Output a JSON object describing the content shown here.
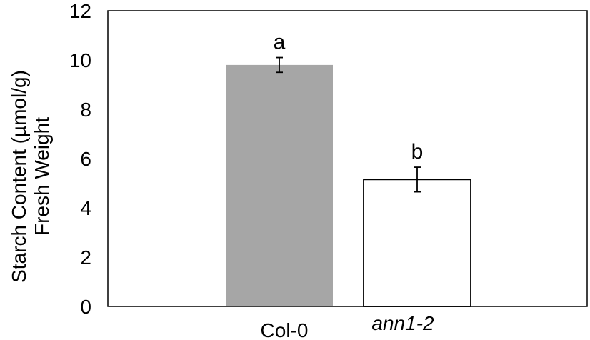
{
  "chart_data": {
    "type": "bar",
    "categories": [
      "Col-0",
      "ann1-2"
    ],
    "category_styles": [
      "normal",
      "italic"
    ],
    "values": [
      9.8,
      5.15
    ],
    "errors": [
      0.3,
      0.5
    ],
    "significance_labels": [
      "a",
      "b"
    ],
    "bar_colors": [
      "#a6a6a6",
      "#ffffff"
    ],
    "bar_edge_colors": [
      "none",
      "#000000"
    ],
    "ylabel_line1": "Starch Content (µmol/g)",
    "ylabel_line2": "Fresh Weight",
    "ylim": [
      0,
      12
    ],
    "yticks": [
      0,
      2,
      4,
      6,
      8,
      10,
      12
    ],
    "grid": false,
    "legend": "none"
  }
}
